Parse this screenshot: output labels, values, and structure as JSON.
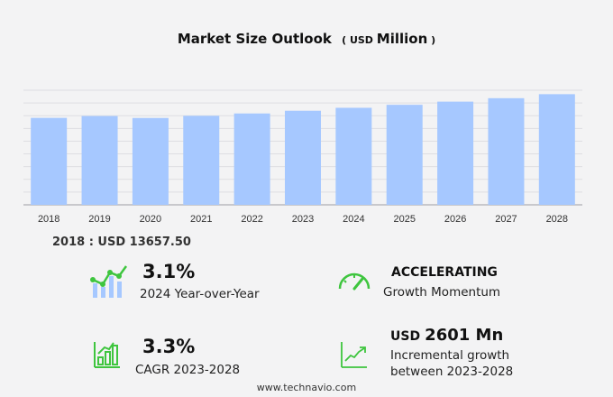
{
  "chart_data": {
    "type": "bar",
    "title": "Market Size Outlook",
    "unit_prefix": "USD",
    "unit_main": "Million",
    "categories": [
      "2018",
      "2019",
      "2020",
      "2021",
      "2022",
      "2023",
      "2024",
      "2025",
      "2026",
      "2027",
      "2028"
    ],
    "values": [
      13657.5,
      13950,
      13640,
      13980,
      14350,
      14780,
      15240,
      15710,
      16210,
      16750,
      17380
    ],
    "ylim": [
      0,
      18000
    ],
    "grid": true,
    "bar_color": "#a6c8ff"
  },
  "base_label": "2018 : USD  13657.50",
  "stats": {
    "yoy": {
      "value": "3.1%",
      "label": "2024 Year-over-Year"
    },
    "momentum": {
      "value": "ACCELERATING",
      "label": "Growth Momentum"
    },
    "cagr": {
      "value": "3.3%",
      "label": "CAGR 2023-2028"
    },
    "incremental": {
      "prefix": "USD",
      "value": "2601 Mn",
      "label1": "Incremental growth",
      "label2": "between 2023-2028"
    }
  },
  "footer": "www.technavio.com",
  "colors": {
    "accent_green": "#3ec53e",
    "bar": "#a6c8ff"
  }
}
